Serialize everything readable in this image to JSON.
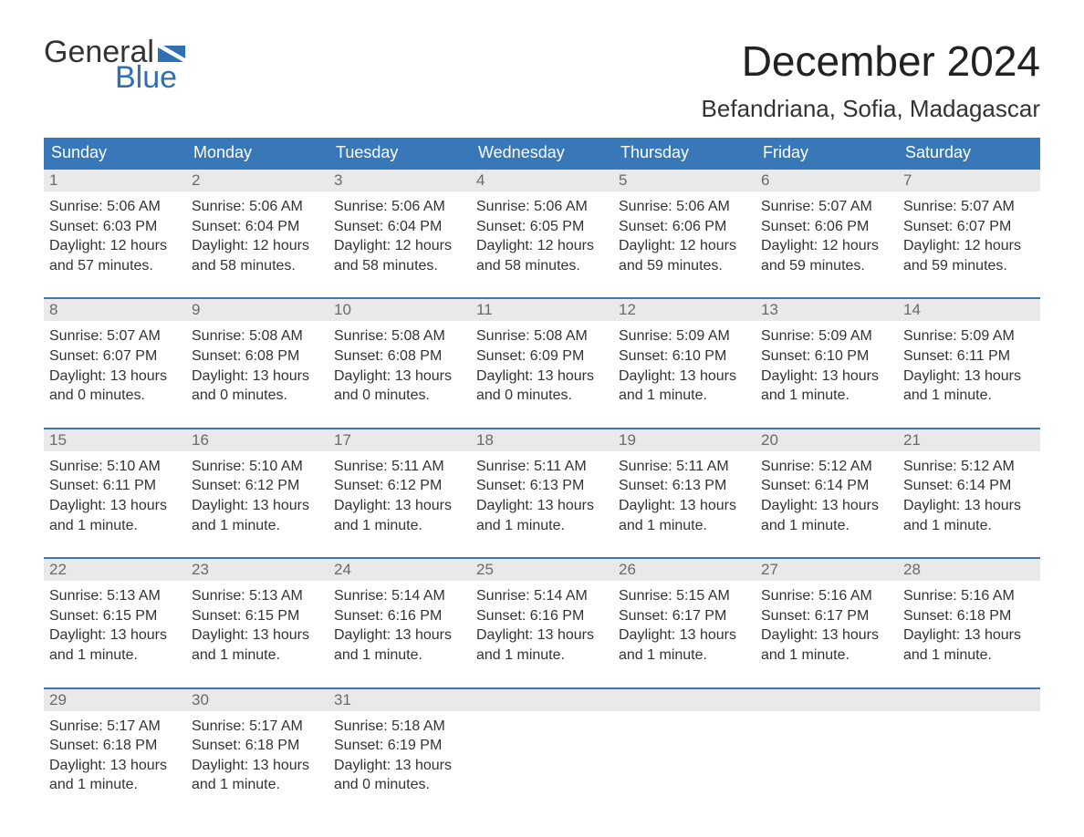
{
  "colors": {
    "header_bg": "#3878b8",
    "week_border": "#3878b8",
    "daynum_bg": "#e9e9e9",
    "daynum_text": "#6a6a6a",
    "text": "#333333",
    "logo_blue": "#2f6fb2",
    "background": "#ffffff"
  },
  "typography": {
    "month_title_fontsize": 46,
    "location_fontsize": 26,
    "weekday_fontsize": 18,
    "daynum_fontsize": 17,
    "body_fontsize": 16
  },
  "logo": {
    "top": "General",
    "bottom": "Blue"
  },
  "title": "December 2024",
  "location": "Befandriana, Sofia, Madagascar",
  "weekdays": [
    "Sunday",
    "Monday",
    "Tuesday",
    "Wednesday",
    "Thursday",
    "Friday",
    "Saturday"
  ],
  "weeks": [
    [
      {
        "n": "1",
        "sunrise": "Sunrise: 5:06 AM",
        "sunset": "Sunset: 6:03 PM",
        "d1": "Daylight: 12 hours",
        "d2": "and 57 minutes."
      },
      {
        "n": "2",
        "sunrise": "Sunrise: 5:06 AM",
        "sunset": "Sunset: 6:04 PM",
        "d1": "Daylight: 12 hours",
        "d2": "and 58 minutes."
      },
      {
        "n": "3",
        "sunrise": "Sunrise: 5:06 AM",
        "sunset": "Sunset: 6:04 PM",
        "d1": "Daylight: 12 hours",
        "d2": "and 58 minutes."
      },
      {
        "n": "4",
        "sunrise": "Sunrise: 5:06 AM",
        "sunset": "Sunset: 6:05 PM",
        "d1": "Daylight: 12 hours",
        "d2": "and 58 minutes."
      },
      {
        "n": "5",
        "sunrise": "Sunrise: 5:06 AM",
        "sunset": "Sunset: 6:06 PM",
        "d1": "Daylight: 12 hours",
        "d2": "and 59 minutes."
      },
      {
        "n": "6",
        "sunrise": "Sunrise: 5:07 AM",
        "sunset": "Sunset: 6:06 PM",
        "d1": "Daylight: 12 hours",
        "d2": "and 59 minutes."
      },
      {
        "n": "7",
        "sunrise": "Sunrise: 5:07 AM",
        "sunset": "Sunset: 6:07 PM",
        "d1": "Daylight: 12 hours",
        "d2": "and 59 minutes."
      }
    ],
    [
      {
        "n": "8",
        "sunrise": "Sunrise: 5:07 AM",
        "sunset": "Sunset: 6:07 PM",
        "d1": "Daylight: 13 hours",
        "d2": "and 0 minutes."
      },
      {
        "n": "9",
        "sunrise": "Sunrise: 5:08 AM",
        "sunset": "Sunset: 6:08 PM",
        "d1": "Daylight: 13 hours",
        "d2": "and 0 minutes."
      },
      {
        "n": "10",
        "sunrise": "Sunrise: 5:08 AM",
        "sunset": "Sunset: 6:08 PM",
        "d1": "Daylight: 13 hours",
        "d2": "and 0 minutes."
      },
      {
        "n": "11",
        "sunrise": "Sunrise: 5:08 AM",
        "sunset": "Sunset: 6:09 PM",
        "d1": "Daylight: 13 hours",
        "d2": "and 0 minutes."
      },
      {
        "n": "12",
        "sunrise": "Sunrise: 5:09 AM",
        "sunset": "Sunset: 6:10 PM",
        "d1": "Daylight: 13 hours",
        "d2": "and 1 minute."
      },
      {
        "n": "13",
        "sunrise": "Sunrise: 5:09 AM",
        "sunset": "Sunset: 6:10 PM",
        "d1": "Daylight: 13 hours",
        "d2": "and 1 minute."
      },
      {
        "n": "14",
        "sunrise": "Sunrise: 5:09 AM",
        "sunset": "Sunset: 6:11 PM",
        "d1": "Daylight: 13 hours",
        "d2": "and 1 minute."
      }
    ],
    [
      {
        "n": "15",
        "sunrise": "Sunrise: 5:10 AM",
        "sunset": "Sunset: 6:11 PM",
        "d1": "Daylight: 13 hours",
        "d2": "and 1 minute."
      },
      {
        "n": "16",
        "sunrise": "Sunrise: 5:10 AM",
        "sunset": "Sunset: 6:12 PM",
        "d1": "Daylight: 13 hours",
        "d2": "and 1 minute."
      },
      {
        "n": "17",
        "sunrise": "Sunrise: 5:11 AM",
        "sunset": "Sunset: 6:12 PM",
        "d1": "Daylight: 13 hours",
        "d2": "and 1 minute."
      },
      {
        "n": "18",
        "sunrise": "Sunrise: 5:11 AM",
        "sunset": "Sunset: 6:13 PM",
        "d1": "Daylight: 13 hours",
        "d2": "and 1 minute."
      },
      {
        "n": "19",
        "sunrise": "Sunrise: 5:11 AM",
        "sunset": "Sunset: 6:13 PM",
        "d1": "Daylight: 13 hours",
        "d2": "and 1 minute."
      },
      {
        "n": "20",
        "sunrise": "Sunrise: 5:12 AM",
        "sunset": "Sunset: 6:14 PM",
        "d1": "Daylight: 13 hours",
        "d2": "and 1 minute."
      },
      {
        "n": "21",
        "sunrise": "Sunrise: 5:12 AM",
        "sunset": "Sunset: 6:14 PM",
        "d1": "Daylight: 13 hours",
        "d2": "and 1 minute."
      }
    ],
    [
      {
        "n": "22",
        "sunrise": "Sunrise: 5:13 AM",
        "sunset": "Sunset: 6:15 PM",
        "d1": "Daylight: 13 hours",
        "d2": "and 1 minute."
      },
      {
        "n": "23",
        "sunrise": "Sunrise: 5:13 AM",
        "sunset": "Sunset: 6:15 PM",
        "d1": "Daylight: 13 hours",
        "d2": "and 1 minute."
      },
      {
        "n": "24",
        "sunrise": "Sunrise: 5:14 AM",
        "sunset": "Sunset: 6:16 PM",
        "d1": "Daylight: 13 hours",
        "d2": "and 1 minute."
      },
      {
        "n": "25",
        "sunrise": "Sunrise: 5:14 AM",
        "sunset": "Sunset: 6:16 PM",
        "d1": "Daylight: 13 hours",
        "d2": "and 1 minute."
      },
      {
        "n": "26",
        "sunrise": "Sunrise: 5:15 AM",
        "sunset": "Sunset: 6:17 PM",
        "d1": "Daylight: 13 hours",
        "d2": "and 1 minute."
      },
      {
        "n": "27",
        "sunrise": "Sunrise: 5:16 AM",
        "sunset": "Sunset: 6:17 PM",
        "d1": "Daylight: 13 hours",
        "d2": "and 1 minute."
      },
      {
        "n": "28",
        "sunrise": "Sunrise: 5:16 AM",
        "sunset": "Sunset: 6:18 PM",
        "d1": "Daylight: 13 hours",
        "d2": "and 1 minute."
      }
    ],
    [
      {
        "n": "29",
        "sunrise": "Sunrise: 5:17 AM",
        "sunset": "Sunset: 6:18 PM",
        "d1": "Daylight: 13 hours",
        "d2": "and 1 minute."
      },
      {
        "n": "30",
        "sunrise": "Sunrise: 5:17 AM",
        "sunset": "Sunset: 6:18 PM",
        "d1": "Daylight: 13 hours",
        "d2": "and 1 minute."
      },
      {
        "n": "31",
        "sunrise": "Sunrise: 5:18 AM",
        "sunset": "Sunset: 6:19 PM",
        "d1": "Daylight: 13 hours",
        "d2": "and 0 minutes."
      },
      null,
      null,
      null,
      null
    ]
  ]
}
